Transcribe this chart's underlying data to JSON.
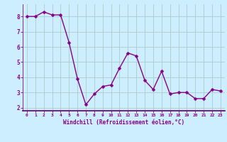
{
  "x": [
    0,
    1,
    2,
    3,
    4,
    5,
    6,
    7,
    8,
    9,
    10,
    11,
    12,
    13,
    14,
    15,
    16,
    17,
    18,
    19,
    20,
    21,
    22,
    23
  ],
  "y": [
    8.0,
    8.0,
    8.3,
    8.1,
    8.1,
    6.3,
    3.9,
    2.2,
    2.9,
    3.4,
    3.5,
    4.6,
    5.6,
    5.4,
    3.8,
    3.2,
    4.4,
    2.9,
    3.0,
    3.0,
    2.6,
    2.6,
    3.2,
    3.1
  ],
  "line_color": "#880088",
  "marker_color": "#880088",
  "bg_color": "#cceeff",
  "grid_color": "#aacccc",
  "xlabel": "Windchill (Refroidissement éolien,°C)",
  "xlabel_color": "#880088",
  "tick_color": "#880088",
  "ylim": [
    1.8,
    8.8
  ],
  "yticks": [
    2,
    3,
    4,
    5,
    6,
    7,
    8
  ],
  "xlim": [
    -0.5,
    23.5
  ],
  "xticks": [
    0,
    1,
    2,
    3,
    4,
    5,
    6,
    7,
    8,
    9,
    10,
    11,
    12,
    13,
    14,
    15,
    16,
    17,
    18,
    19,
    20,
    21,
    22,
    23
  ],
  "xtick_labels": [
    "0",
    "1",
    "2",
    "3",
    "4",
    "5",
    "6",
    "7",
    "8",
    "9",
    "10",
    "11",
    "12",
    "13",
    "14",
    "15",
    "16",
    "17",
    "18",
    "19",
    "20",
    "21",
    "22",
    "23"
  ],
  "linewidth": 1.0,
  "markersize": 2.5
}
